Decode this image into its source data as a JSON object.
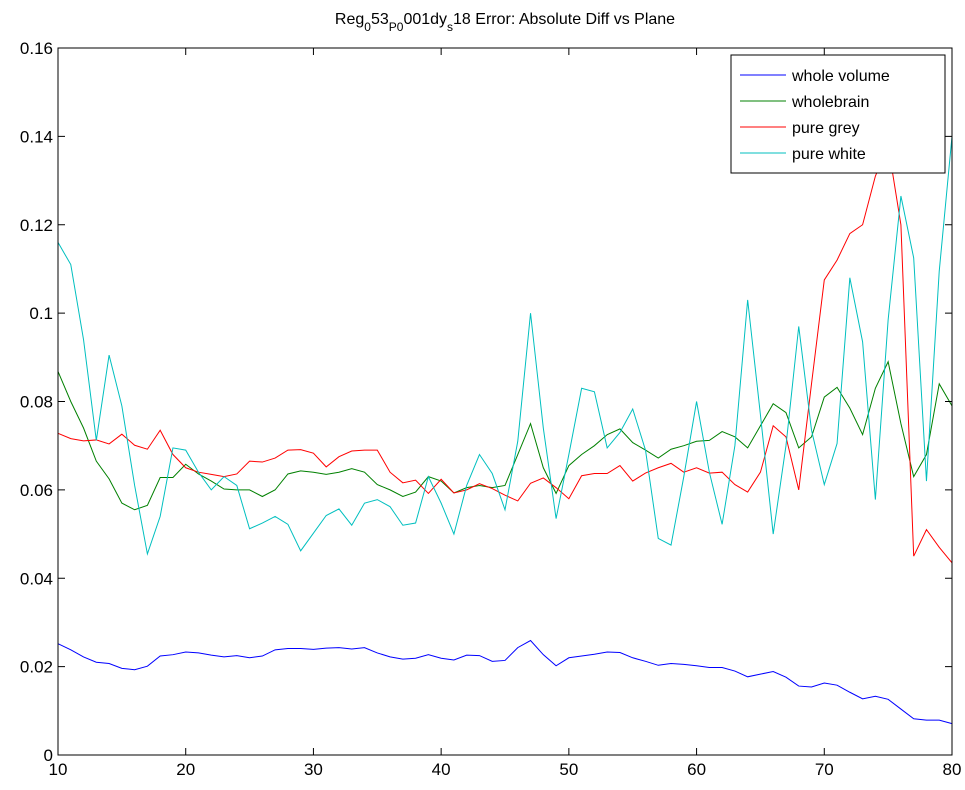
{
  "chart_data": {
    "type": "line",
    "title": {
      "parts": [
        {
          "text": "Reg",
          "baseline": "normal"
        },
        {
          "text": "0",
          "baseline": "sub"
        },
        {
          "text": "53",
          "baseline": "normal"
        },
        {
          "text": "P0",
          "baseline": "sub"
        },
        {
          "text": "001dy",
          "baseline": "normal"
        },
        {
          "text": "s",
          "baseline": "sub"
        },
        {
          "text": "18 Error: Absolute Diff vs Plane",
          "baseline": "normal"
        }
      ]
    },
    "xlabel": "",
    "ylabel": "",
    "xlim": [
      10,
      80
    ],
    "ylim": [
      0,
      0.16
    ],
    "xticks": [
      10,
      20,
      30,
      40,
      50,
      60,
      70,
      80
    ],
    "xtick_labels": [
      "10",
      "20",
      "30",
      "40",
      "50",
      "60",
      "70",
      "80"
    ],
    "yticks": [
      0,
      0.02,
      0.04,
      0.06,
      0.08,
      0.1,
      0.12,
      0.14,
      0.16
    ],
    "ytick_labels": [
      "0",
      "0.02",
      "0.04",
      "0.06",
      "0.08",
      "0.1",
      "0.12",
      "0.14",
      "0.16"
    ],
    "grid": false,
    "legend_position": "top-right",
    "x": [
      10,
      11,
      12,
      13,
      14,
      15,
      16,
      17,
      18,
      19,
      20,
      21,
      22,
      23,
      24,
      25,
      26,
      27,
      28,
      29,
      30,
      31,
      32,
      33,
      34,
      35,
      36,
      37,
      38,
      39,
      40,
      41,
      42,
      43,
      44,
      45,
      46,
      47,
      48,
      49,
      50,
      51,
      52,
      53,
      54,
      55,
      56,
      57,
      58,
      59,
      60,
      61,
      62,
      63,
      64,
      65,
      66,
      67,
      68,
      69,
      70,
      71,
      72,
      73,
      74,
      75,
      76,
      77,
      78,
      79,
      80
    ],
    "series": [
      {
        "name": "whole volume",
        "color": "#0000ff",
        "values": [
          0.0252,
          0.0238,
          0.0222,
          0.021,
          0.0207,
          0.0196,
          0.0193,
          0.0201,
          0.0224,
          0.0227,
          0.0233,
          0.0231,
          0.0226,
          0.0222,
          0.0225,
          0.022,
          0.0224,
          0.0238,
          0.0241,
          0.0241,
          0.0239,
          0.0242,
          0.0243,
          0.024,
          0.0243,
          0.0231,
          0.0222,
          0.0217,
          0.0219,
          0.0227,
          0.0219,
          0.0215,
          0.0226,
          0.0225,
          0.0212,
          0.0214,
          0.0243,
          0.0259,
          0.0227,
          0.0202,
          0.022,
          0.0224,
          0.0228,
          0.0233,
          0.0232,
          0.022,
          0.0212,
          0.0203,
          0.0207,
          0.0205,
          0.0202,
          0.0198,
          0.0198,
          0.019,
          0.0177,
          0.0183,
          0.0189,
          0.0176,
          0.0156,
          0.0154,
          0.0163,
          0.0158,
          0.0142,
          0.0127,
          0.0133,
          0.0126,
          0.0104,
          0.0082,
          0.0079,
          0.0079,
          0.0071
        ]
      },
      {
        "name": "wholebrain",
        "color": "#008000",
        "values": [
          0.0868,
          0.08,
          0.074,
          0.0665,
          0.0625,
          0.057,
          0.0555,
          0.0565,
          0.0628,
          0.0628,
          0.0658,
          0.0636,
          0.062,
          0.0602,
          0.06,
          0.06,
          0.0585,
          0.06,
          0.0636,
          0.0643,
          0.064,
          0.0635,
          0.064,
          0.0648,
          0.064,
          0.0612,
          0.06,
          0.0585,
          0.0595,
          0.063,
          0.062,
          0.0593,
          0.0605,
          0.061,
          0.0605,
          0.061,
          0.068,
          0.075,
          0.065,
          0.0592,
          0.0655,
          0.068,
          0.07,
          0.0725,
          0.0738,
          0.0707,
          0.069,
          0.0672,
          0.0692,
          0.07,
          0.071,
          0.0712,
          0.0732,
          0.072,
          0.0695,
          0.0745,
          0.0795,
          0.0775,
          0.0695,
          0.072,
          0.081,
          0.0832,
          0.0785,
          0.0725,
          0.083,
          0.089,
          0.075,
          0.063,
          0.068,
          0.084,
          0.079
        ]
      },
      {
        "name": "pure grey",
        "color": "#ff0000",
        "values": [
          0.0728,
          0.0716,
          0.0711,
          0.0713,
          0.0704,
          0.0726,
          0.0701,
          0.0692,
          0.0735,
          0.068,
          0.065,
          0.064,
          0.0635,
          0.063,
          0.0636,
          0.0665,
          0.0663,
          0.0672,
          0.069,
          0.0691,
          0.0683,
          0.0652,
          0.0675,
          0.0688,
          0.069,
          0.069,
          0.064,
          0.0616,
          0.0622,
          0.0592,
          0.0624,
          0.0593,
          0.06,
          0.0614,
          0.0603,
          0.0588,
          0.0575,
          0.0615,
          0.0627,
          0.0605,
          0.058,
          0.0632,
          0.0637,
          0.0637,
          0.0655,
          0.062,
          0.0638,
          0.065,
          0.066,
          0.064,
          0.065,
          0.0638,
          0.064,
          0.0612,
          0.0595,
          0.064,
          0.0745,
          0.072,
          0.06,
          0.084,
          0.1075,
          0.112,
          0.118,
          0.12,
          0.131,
          0.138,
          0.12,
          0.045,
          0.051,
          0.047,
          0.0435
        ]
      },
      {
        "name": "pure white",
        "color": "#00bfbf",
        "values": [
          0.116,
          0.111,
          0.094,
          0.0712,
          0.0905,
          0.079,
          0.061,
          0.0455,
          0.054,
          0.0695,
          0.069,
          0.064,
          0.06,
          0.063,
          0.061,
          0.0512,
          0.0525,
          0.054,
          0.0522,
          0.0462,
          0.0502,
          0.0542,
          0.0557,
          0.052,
          0.057,
          0.0578,
          0.0562,
          0.052,
          0.0525,
          0.063,
          0.057,
          0.05,
          0.061,
          0.068,
          0.0637,
          0.0555,
          0.071,
          0.1,
          0.074,
          0.0535,
          0.068,
          0.083,
          0.0822,
          0.0695,
          0.073,
          0.0783,
          0.069,
          0.049,
          0.0475,
          0.063,
          0.08,
          0.064,
          0.0522,
          0.07,
          0.103,
          0.077,
          0.05,
          0.07,
          0.097,
          0.0735,
          0.0612,
          0.0705,
          0.108,
          0.0935,
          0.0578,
          0.0985,
          0.1265,
          0.1125,
          0.062,
          0.1095,
          0.14
        ]
      }
    ]
  }
}
